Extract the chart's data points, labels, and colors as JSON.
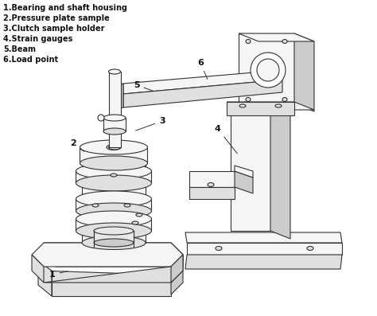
{
  "background_color": "#ffffff",
  "line_color": "#333333",
  "face_light": "#f5f5f5",
  "face_mid": "#e0e0e0",
  "face_dark": "#cccccc",
  "legend": [
    "1.Bearing and shaft housing",
    "2.Pressure plate sample",
    "3.Clutch sample holder",
    "4.Strain gauges",
    "5.Beam",
    "6.Load point"
  ],
  "figsize": [
    4.74,
    3.97
  ],
  "dpi": 100
}
